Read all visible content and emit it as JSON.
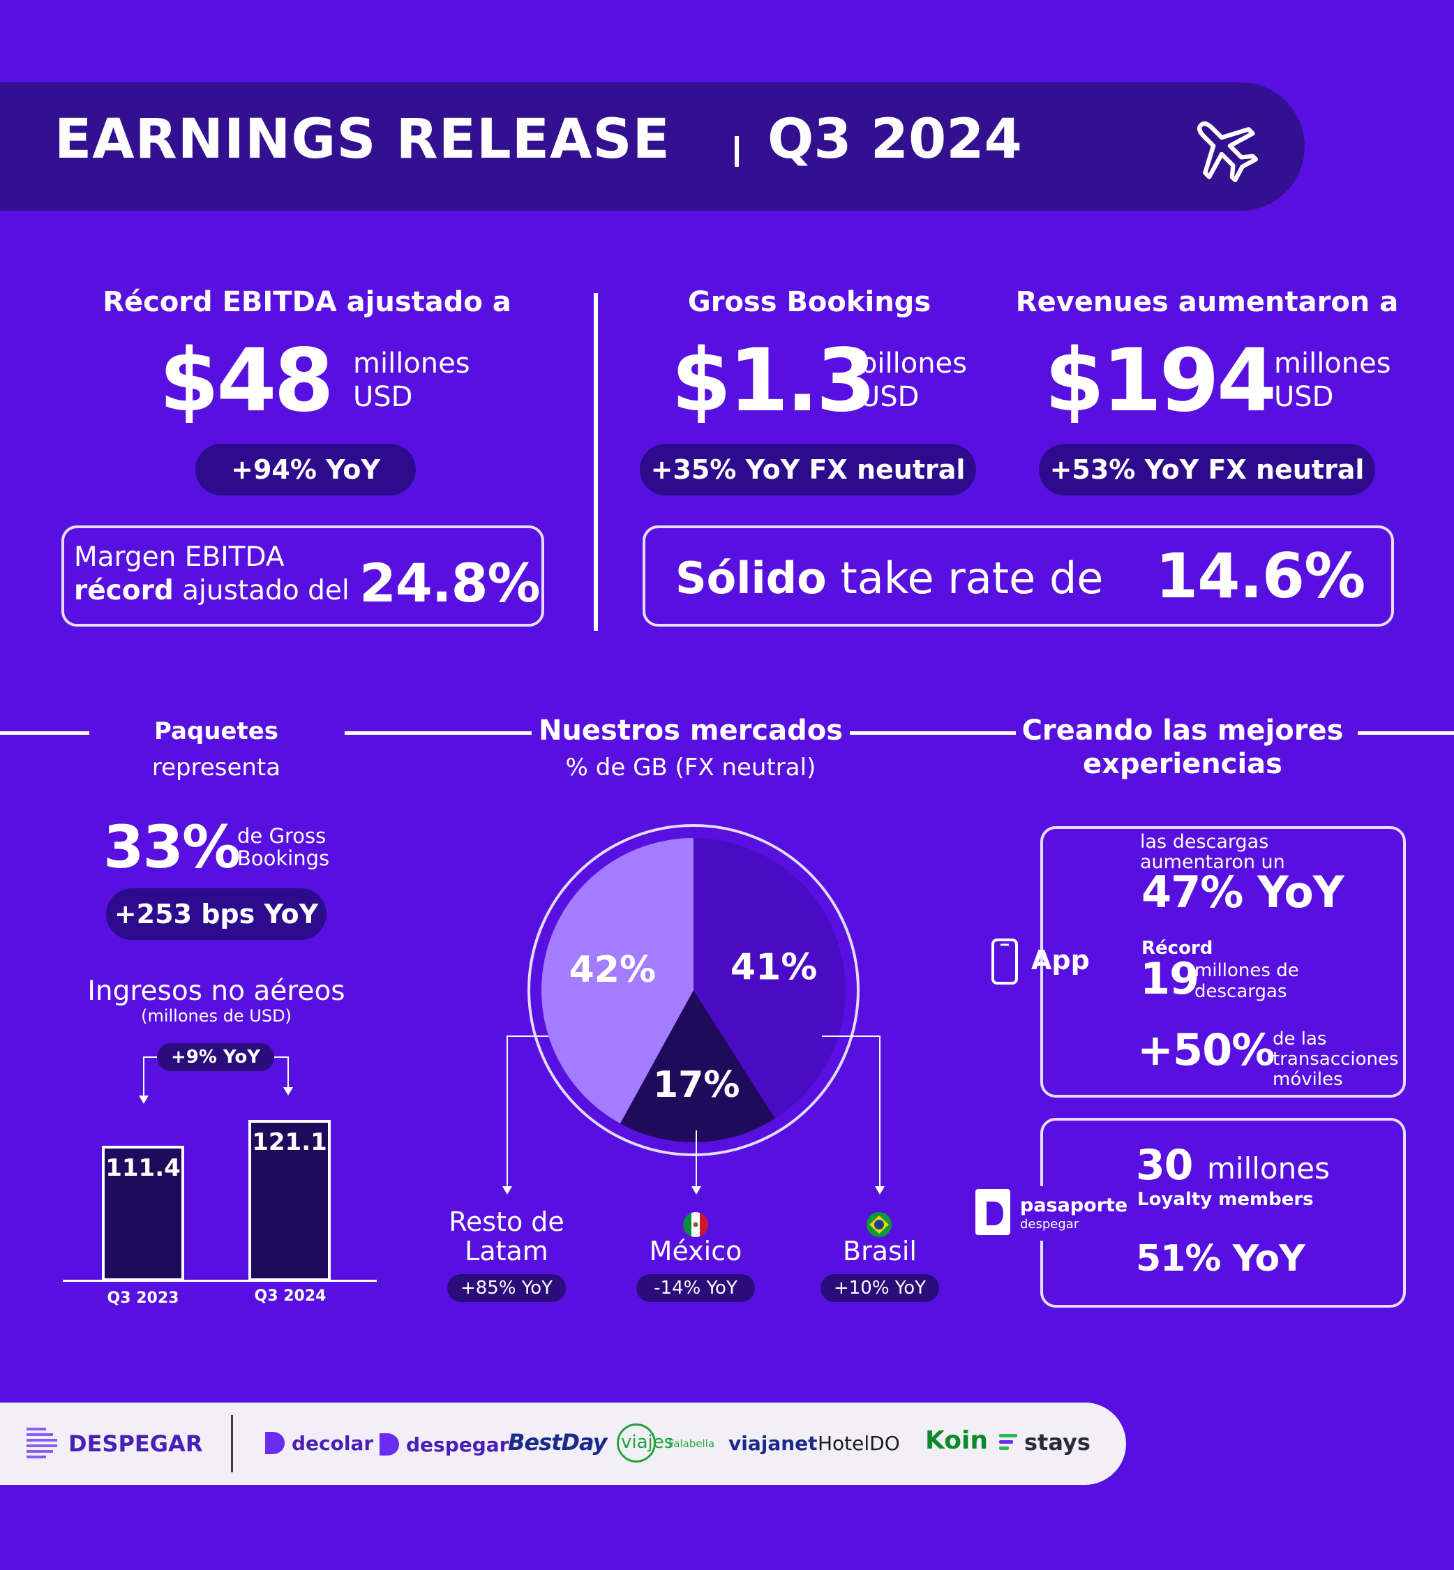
{
  "header": {
    "title": "EARNINGS RELEASE",
    "quarter": "Q3 2024",
    "icon": "airplane-icon"
  },
  "ebitda": {
    "heading": "Récord EBITDA ajustado a",
    "value": "$48",
    "unit_line1": "millones",
    "unit_line2": "USD",
    "badge": "+94% YoY",
    "margin_line1": "Margen EBITDA",
    "margin_line2_bold": "récord",
    "margin_line2_rest": " ajustado del",
    "margin_value": "24.8%"
  },
  "gross_bookings": {
    "heading": "Gross Bookings",
    "value": "$1.3",
    "unit_line1": "billones",
    "unit_line2": "USD",
    "badge": "+35% YoY FX neutral"
  },
  "revenues": {
    "heading": "Revenues aumentaron a",
    "value": "$194",
    "unit_line1": "millones",
    "unit_line2": "USD",
    "badge": "+53% YoY FX neutral"
  },
  "take_rate": {
    "bold": "Sólido",
    "rest": " take rate de",
    "value": "14.6%"
  },
  "paquetes": {
    "heading": "Paquetes",
    "subheading": "representa",
    "value": "33%",
    "unit_line1": "de Gross",
    "unit_line2": "Bookings",
    "badge": "+253 bps YoY"
  },
  "ingresos": {
    "title": "Ingresos no aéreos",
    "subtitle": "(millones de USD)",
    "change": "+9% YoY"
  },
  "markets": {
    "heading": "Nuestros mercados",
    "subheading": "% de GB (FX neutral)",
    "regions": [
      {
        "name_line1": "Resto de",
        "name_line2": "Latam",
        "badge": "+85% YoY"
      },
      {
        "name_line1": "México",
        "name_line2": "",
        "badge": "-14% YoY",
        "flag": "mexico-flag-icon"
      },
      {
        "name_line1": "Brasil",
        "name_line2": "",
        "badge": "+10% YoY",
        "flag": "brazil-flag-icon"
      }
    ]
  },
  "experiences": {
    "heading_line1": "Creando las mejores",
    "heading_line2": "experiencias",
    "app_label": "App",
    "app_icon": "smartphone-icon",
    "downloads_line1": "las descargas",
    "downloads_line2": "aumentaron un",
    "downloads_value": "47% YoY",
    "record_label": "Récord",
    "record_value": "19",
    "record_unit_line1": "millones de",
    "record_unit_line2": "descargas",
    "mobile_value": "+50%",
    "mobile_line1": "de las",
    "mobile_line2": "transacciones",
    "mobile_line3": "móviles",
    "loyalty_brand": "pasaporte",
    "loyalty_brand_sub": "despegar",
    "loyalty_value": "30",
    "loyalty_unit": "millones",
    "loyalty_label": "Loyalty members",
    "loyalty_change": "51% YoY"
  },
  "footer": {
    "brands": [
      "DESPEGAR",
      "decolar",
      "despegar",
      "BestDay",
      "viajes",
      "Falabella",
      "viajanet",
      "HotelDO",
      "Koin",
      "stays"
    ]
  },
  "chart_data": [
    {
      "type": "pie",
      "categories": [
        "Resto de Latam",
        "México",
        "Brasil"
      ],
      "values": [
        42,
        17,
        41
      ],
      "labels": [
        "42%",
        "17%",
        "41%"
      ],
      "colors": [
        "#a47cff",
        "#1f0a5c",
        "#4a0bc4"
      ]
    },
    {
      "type": "bar",
      "categories": [
        "Q3 2023",
        "Q3 2024"
      ],
      "values": [
        111.4,
        121.1
      ],
      "labels": [
        "111.4",
        "121.1"
      ],
      "title": "Ingresos no aéreos",
      "ylabel": "(millones de USD)"
    }
  ]
}
